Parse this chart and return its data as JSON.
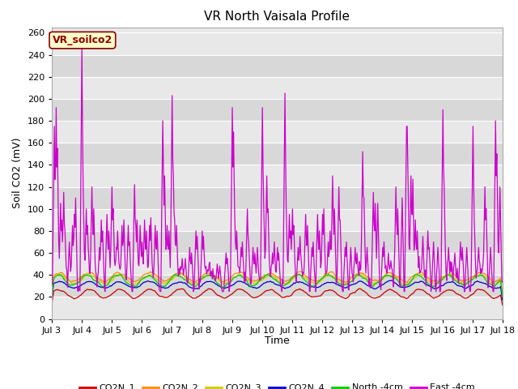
{
  "title": "VR North Vaisala Profile",
  "ylabel": "Soil CO2 (mV)",
  "xlabel": "Time",
  "annotation": "VR_soilco2",
  "ylim": [
    0,
    265
  ],
  "yticks": [
    0,
    20,
    40,
    60,
    80,
    100,
    120,
    140,
    160,
    180,
    200,
    220,
    240,
    260
  ],
  "xtick_labels": [
    "Jul 3",
    "Jul 4",
    "Jul 5",
    "Jul 6",
    "Jul 7",
    "Jul 8",
    "Jul 9",
    "Jul 10",
    "Jul 11",
    "Jul 12",
    "Jul 13",
    "Jul 14",
    "Jul 15",
    "Jul 16",
    "Jul 17",
    "Jul 18"
  ],
  "series_colors": {
    "CO2N_1": "#cc0000",
    "CO2N_2": "#ff8800",
    "CO2N_3": "#cccc00",
    "CO2N_4": "#0000cc",
    "North_4cm": "#00cc00",
    "East_4cm": "#cc00cc"
  },
  "legend_labels": [
    "CO2N_1",
    "CO2N_2",
    "CO2N_3",
    "CO2N_4",
    "North -4cm",
    "East -4cm"
  ],
  "legend_colors": [
    "#cc0000",
    "#ff8800",
    "#cccc00",
    "#0000cc",
    "#00cc00",
    "#cc00cc"
  ],
  "fig_bg": "#ffffff",
  "plot_bg": "#e8e8e8",
  "band_colors": [
    "#e8e8e8",
    "#d8d8d8"
  ],
  "grid_color": "#ffffff",
  "title_fontsize": 11,
  "axis_label_fontsize": 9,
  "tick_fontsize": 8,
  "legend_fontsize": 8
}
